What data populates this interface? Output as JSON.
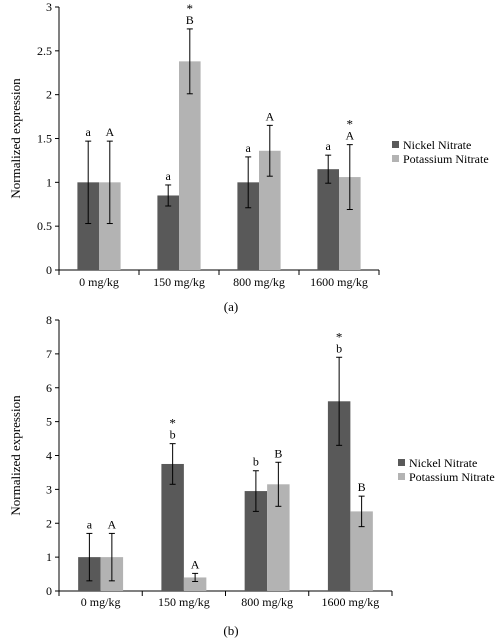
{
  "chart_data": [
    {
      "panel_label": "(a)",
      "type": "bar",
      "ylabel": "Normalized expression",
      "ylim": [
        0,
        3
      ],
      "yticks": [
        "0",
        "0.5",
        "1",
        "1.5",
        "2",
        "2.5",
        "3"
      ],
      "categories": [
        "0 mg/kg",
        "150 mg/kg",
        "800 mg/kg",
        "1600 mg/kg"
      ],
      "legend_position": "right",
      "series": [
        {
          "name": "Nickel Nitrate",
          "color": "#595959",
          "values": [
            1.0,
            0.85,
            1.0,
            1.15
          ],
          "error": [
            0.47,
            0.12,
            0.29,
            0.16
          ],
          "labels": [
            "a",
            "a",
            "a",
            "a"
          ],
          "asterisks": [
            "",
            "",
            "",
            ""
          ]
        },
        {
          "name": "Potassium Nitrate",
          "color": "#b3b3b3",
          "values": [
            1.0,
            2.38,
            1.36,
            1.06
          ],
          "error": [
            0.47,
            0.37,
            0.29,
            0.37
          ],
          "labels": [
            "A",
            "B",
            "A",
            "A"
          ],
          "asterisks": [
            "",
            "*",
            "",
            "*"
          ]
        }
      ]
    },
    {
      "panel_label": "(b)",
      "type": "bar",
      "ylabel": "Normalized expression",
      "ylim": [
        0,
        8
      ],
      "yticks": [
        "0",
        "1",
        "2",
        "3",
        "4",
        "5",
        "6",
        "7",
        "8"
      ],
      "categories": [
        "0 mg/kg",
        "150 mg/kg",
        "800 mg/kg",
        "1600 mg/kg"
      ],
      "legend_position": "right",
      "series": [
        {
          "name": "Nickel Nitrate",
          "color": "#595959",
          "values": [
            1.0,
            3.75,
            2.95,
            5.6
          ],
          "error": [
            0.7,
            0.6,
            0.6,
            1.3
          ],
          "labels": [
            "a",
            "b",
            "b",
            "b"
          ],
          "asterisks": [
            "",
            "*",
            "",
            "*"
          ]
        },
        {
          "name": "Potassium Nitrate",
          "color": "#b3b3b3",
          "values": [
            1.0,
            0.4,
            3.15,
            2.35
          ],
          "error": [
            0.7,
            0.12,
            0.65,
            0.45
          ],
          "labels": [
            "A",
            "A",
            "B",
            "B"
          ],
          "asterisks": [
            "",
            "",
            "",
            ""
          ]
        }
      ]
    }
  ]
}
